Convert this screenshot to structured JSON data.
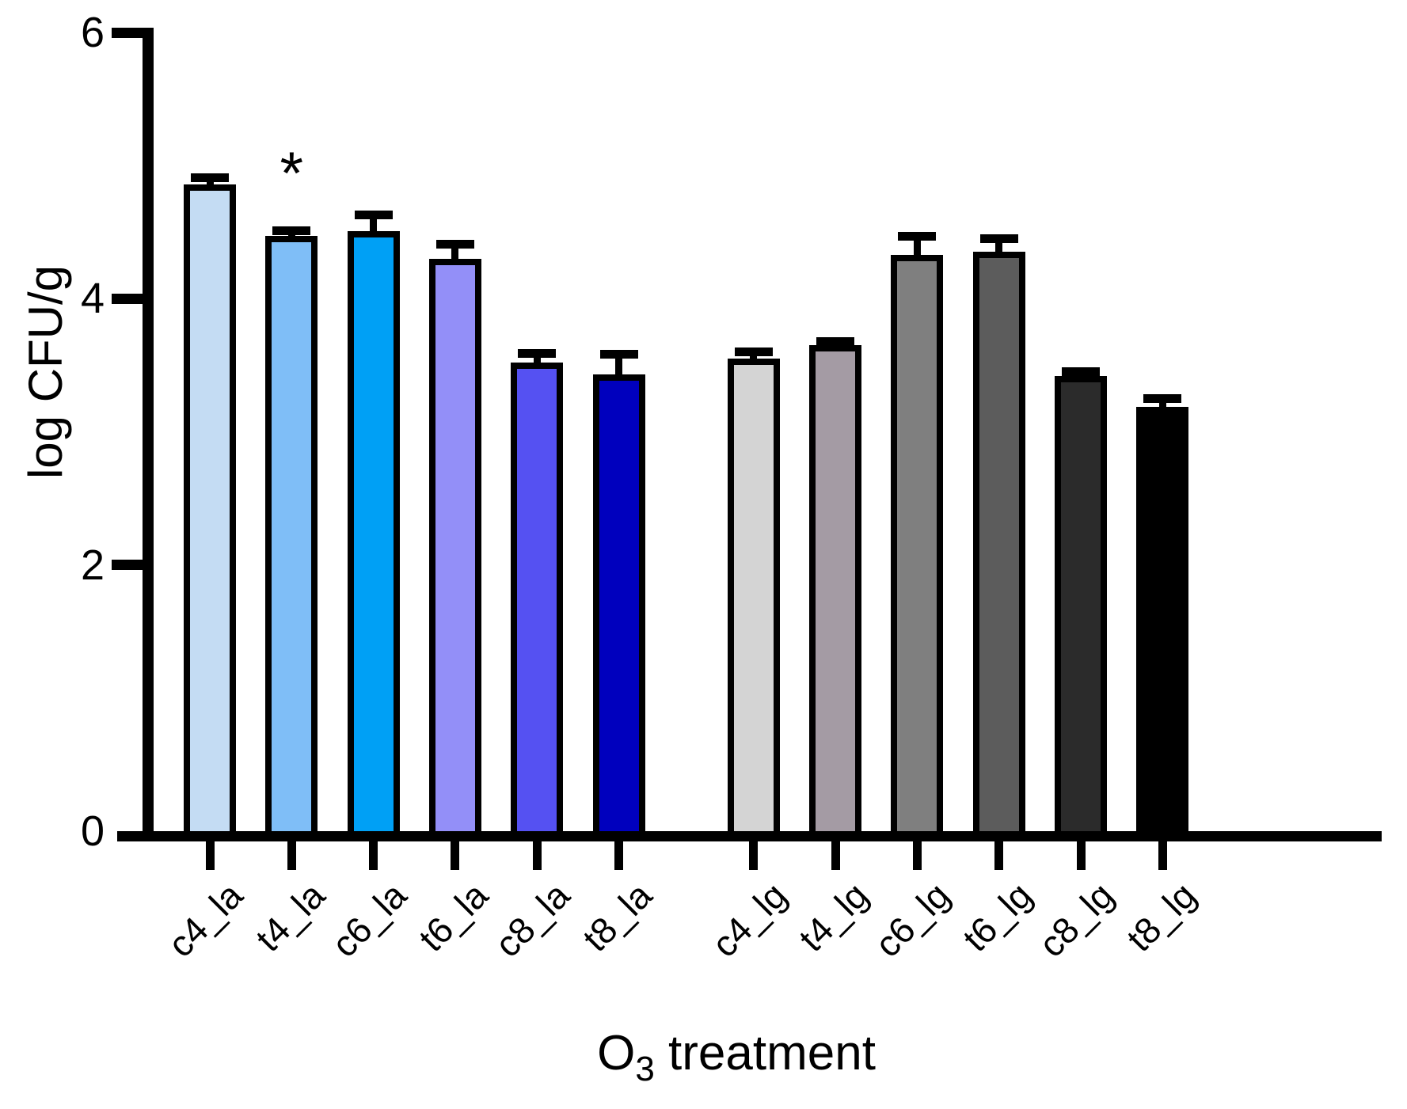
{
  "figure": {
    "background": "#FFFFFF",
    "axis_color": "#000000"
  },
  "chart_data": {
    "type": "bar",
    "title": "",
    "ylabel": "log CFU/g",
    "xlabel_main": "O",
    "xlabel_sub": "3",
    "xlabel_rest": " treatment",
    "ylim": [
      0,
      6
    ],
    "yticks": [
      0,
      2,
      4,
      6
    ],
    "grid": false,
    "legend": "none",
    "error_bars": "upper standard-error whiskers with caps",
    "bar_groups": [
      "la",
      "lg"
    ],
    "categories": [
      "c4_la",
      "t4_la",
      "c6_la",
      "t6_la",
      "c8_la",
      "t8_la",
      "c4_lg",
      "t4_lg",
      "c6_lg",
      "t6_lg",
      "c8_lg",
      "t8_lg"
    ],
    "bars": [
      {
        "label": "c4_la",
        "value": 4.86,
        "error": 0.05,
        "color": "#C4DCF3",
        "group": "la"
      },
      {
        "label": "t4_la",
        "value": 4.47,
        "error": 0.04,
        "color": "#7FBEF7",
        "group": "la"
      },
      {
        "label": "c6_la",
        "value": 4.51,
        "error": 0.12,
        "color": "#00A0F5",
        "group": "la"
      },
      {
        "label": "t6_la",
        "value": 4.3,
        "error": 0.11,
        "color": "#938FF8",
        "group": "la"
      },
      {
        "label": "c8_la",
        "value": 3.52,
        "error": 0.07,
        "color": "#5551F2",
        "group": "la"
      },
      {
        "label": "t8_la",
        "value": 3.43,
        "error": 0.15,
        "color": "#0000BE",
        "group": "la"
      },
      {
        "label": "c4_lg",
        "value": 3.55,
        "error": 0.05,
        "color": "#D4D4D4",
        "group": "lg"
      },
      {
        "label": "t4_lg",
        "value": 3.65,
        "error": 0.03,
        "color": "#A49BA4",
        "group": "lg"
      },
      {
        "label": "c6_lg",
        "value": 4.33,
        "error": 0.14,
        "color": "#7F7F7F",
        "group": "lg"
      },
      {
        "label": "t6_lg",
        "value": 4.35,
        "error": 0.1,
        "color": "#5C5C5C",
        "group": "lg"
      },
      {
        "label": "c8_lg",
        "value": 3.42,
        "error": 0.03,
        "color": "#2B2B2B",
        "group": "lg"
      },
      {
        "label": "t8_lg",
        "value": 3.19,
        "error": 0.06,
        "color": "#000000",
        "group": "lg"
      }
    ],
    "annotations": [
      {
        "symbol": "*",
        "bar": "t4_la",
        "meaning": "significance marker"
      }
    ]
  }
}
